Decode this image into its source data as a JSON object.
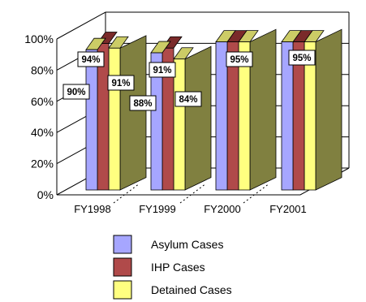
{
  "chart_data": {
    "type": "bar",
    "categories": [
      "FY1998",
      "FY1999",
      "FY2000",
      "FY2001"
    ],
    "series": [
      {
        "name": "Asylum Cases",
        "values": [
          90,
          88,
          95,
          95
        ],
        "color": "#a6a6ff"
      },
      {
        "name": "IHP Cases",
        "values": [
          94,
          91,
          95,
          95
        ],
        "color": "#b04a4a"
      },
      {
        "name": "Detained Cases",
        "values": [
          91,
          84,
          95,
          95
        ],
        "color": "#ffff80"
      }
    ],
    "y_ticks": [
      "0%",
      "20%",
      "40%",
      "60%",
      "80%",
      "100%"
    ],
    "ylim": [
      0,
      100
    ],
    "data_labels": [
      {
        "category": "FY1998",
        "series": "Asylum Cases",
        "text": "90%"
      },
      {
        "category": "FY1998",
        "series": "IHP Cases",
        "text": "94%"
      },
      {
        "category": "FY1998",
        "series": "Detained Cases",
        "text": "91%"
      },
      {
        "category": "FY1999",
        "series": "Asylum Cases",
        "text": "88%"
      },
      {
        "category": "FY1999",
        "series": "IHP Cases",
        "text": "91%"
      },
      {
        "category": "FY1999",
        "series": "Detained Cases",
        "text": "84%"
      },
      {
        "category": "FY2000",
        "series": "IHP Cases",
        "text": "95%"
      },
      {
        "category": "FY2001",
        "series": "IHP Cases",
        "text": "95%"
      }
    ],
    "grid": true,
    "three_d": true,
    "legend_position": "bottom",
    "title": "",
    "xlabel": "",
    "ylabel": ""
  },
  "colors": {
    "side_face": "#808040",
    "top_face": "#cccc66",
    "dark_side": "#7a2a2a"
  }
}
